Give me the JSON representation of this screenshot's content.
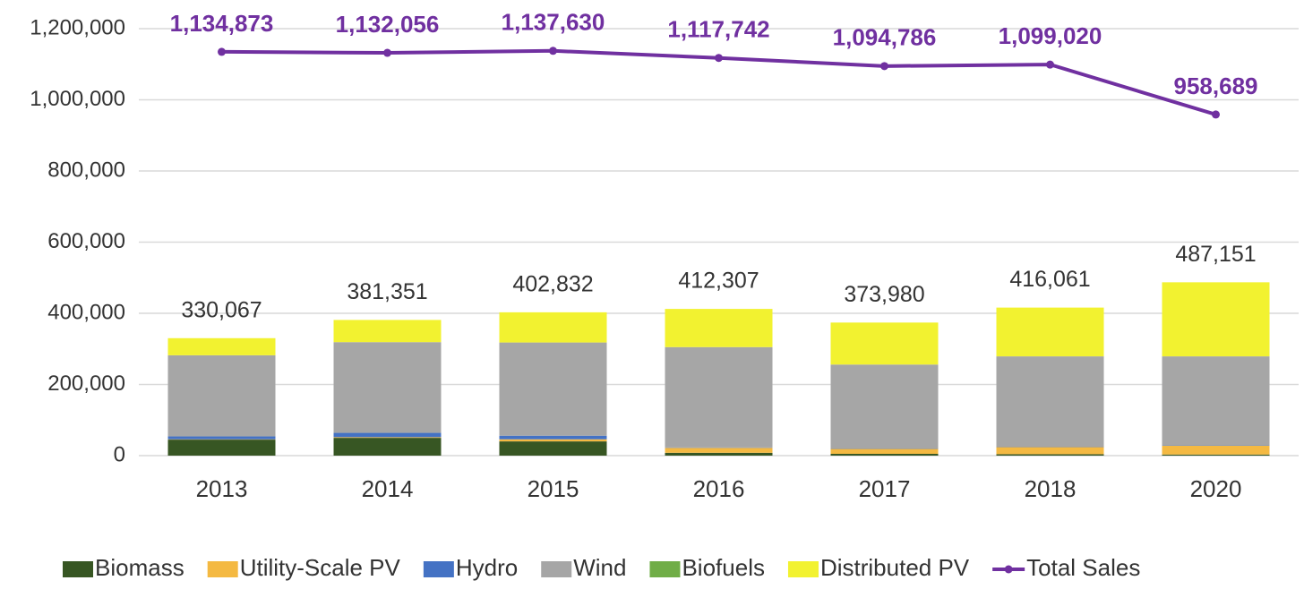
{
  "chart_data": {
    "type": "bar",
    "stacked": true,
    "categories": [
      "2013",
      "2014",
      "2015",
      "2016",
      "2017",
      "2018",
      "2020"
    ],
    "series": [
      {
        "name": "Biomass",
        "color": "#375623",
        "values": [
          45000,
          50000,
          40000,
          8000,
          5000,
          4000,
          3000
        ]
      },
      {
        "name": "Utility-Scale PV",
        "color": "#f4b942",
        "values": [
          1000,
          2000,
          6000,
          14000,
          14000,
          20000,
          25000
        ]
      },
      {
        "name": "Hydro",
        "color": "#4472c4",
        "values": [
          8000,
          12000,
          10000,
          1000,
          1000,
          1000,
          1000
        ]
      },
      {
        "name": "Wind",
        "color": "#a6a6a6",
        "values": [
          228000,
          255000,
          262000,
          282000,
          236000,
          254000,
          250000
        ]
      },
      {
        "name": "Biofuels",
        "color": "#70ad47",
        "values": [
          0,
          0,
          0,
          0,
          0,
          0,
          0
        ]
      },
      {
        "name": "Distributed PV",
        "color": "#f2f230",
        "values": [
          48067,
          62351,
          84832,
          107307,
          117980,
          137061,
          208151
        ]
      },
      {
        "name": "Total Sales",
        "type": "line",
        "color": "#7030a0",
        "values": [
          1134873,
          1132056,
          1137630,
          1117742,
          1094786,
          1099020,
          958689
        ],
        "value_labels": [
          "1,134,873",
          "1,132,056",
          "1,137,630",
          "1,117,742",
          "1,094,786",
          "1,099,020",
          "958,689"
        ]
      }
    ],
    "bar_totals": {
      "values": [
        330067,
        381351,
        402832,
        412307,
        373980,
        416061,
        487151
      ],
      "value_labels": [
        "330,067",
        "381,351",
        "402,832",
        "412,307",
        "373,980",
        "416,061",
        "487,151"
      ]
    },
    "ylim": [
      0,
      1200000
    ],
    "yticks": [
      0,
      {
        "value": 200000,
        "label": "200,000"
      },
      {
        "value": 400000,
        "label": "400,000"
      },
      {
        "value": 600000,
        "label": "600,000"
      },
      {
        "value": 800000,
        "label": "800,000"
      },
      {
        "value": 1000000,
        "label": "1,000,000"
      },
      {
        "value": 1200000,
        "label": "1,200,000"
      }
    ],
    "grid": true,
    "legend": "bottom"
  }
}
